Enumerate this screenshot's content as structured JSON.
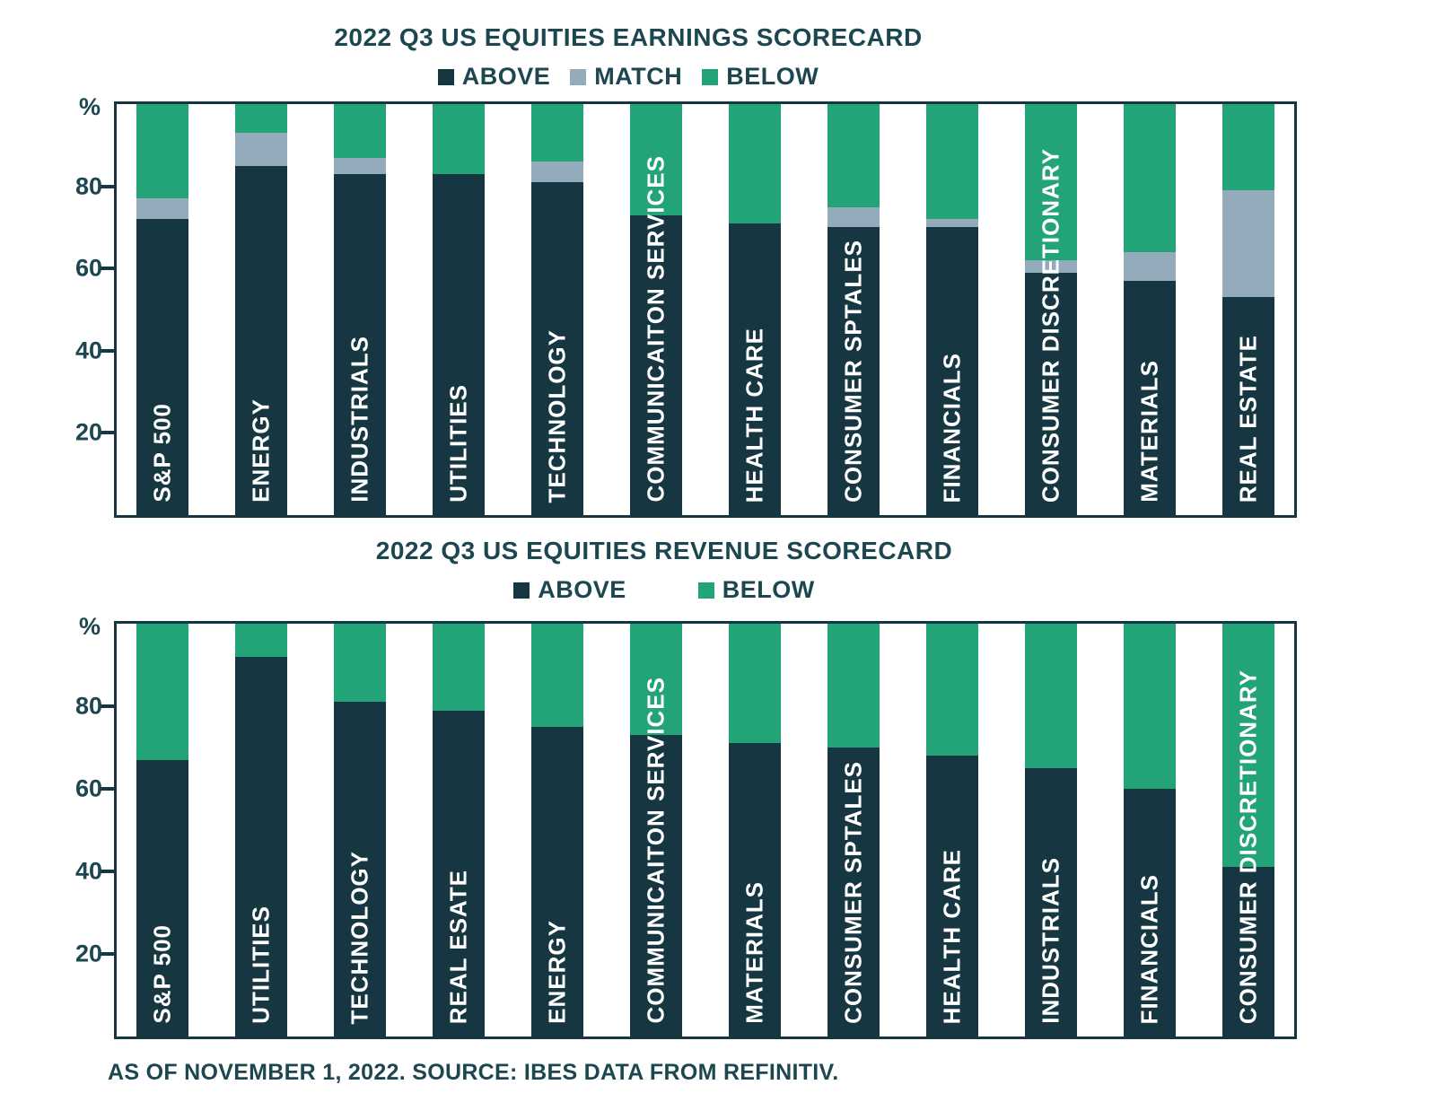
{
  "page": {
    "background": "#ffffff"
  },
  "colors": {
    "above": "#163741",
    "match": "#93ABBB",
    "below": "#22A378",
    "text": "#1C4750",
    "bar_label": "#ffffff"
  },
  "footer": {
    "text": "AS OF NOVEMBER 1, 2022. SOURCE: IBES DATA FROM REFINITIV."
  },
  "chart_data": [
    {
      "type": "bar",
      "stacked": true,
      "title": "2022 Q3 US EQUITIES EARNINGS SCORECARD",
      "ylabel": "%",
      "ylim": [
        0,
        100
      ],
      "y_ticks": [
        20,
        40,
        60,
        80
      ],
      "grid": false,
      "legend_position": "top",
      "categories": [
        "S&P 500",
        "ENERGY",
        "INDUSTRIALS",
        "UTILITIES",
        "TECHNOLOGY",
        "COMMUNICAITON SERVICES",
        "HEALTH CARE",
        "CONSUMER SPTALES",
        "FINANCIALS",
        "CONSUMER DISCRETIONARY",
        "MATERIALS",
        "REAL ESTATE"
      ],
      "series": [
        {
          "name": "ABOVE",
          "color_key": "above",
          "values": [
            72,
            85,
            83,
            83,
            81,
            73,
            71,
            70,
            70,
            59,
            57,
            53
          ]
        },
        {
          "name": "MATCH",
          "color_key": "match",
          "values": [
            5,
            8,
            4,
            0,
            5,
            0,
            0,
            5,
            2,
            3,
            7,
            26
          ]
        },
        {
          "name": "BELOW",
          "color_key": "below",
          "values": [
            23,
            7,
            13,
            17,
            14,
            27,
            29,
            25,
            28,
            38,
            36,
            21
          ]
        }
      ]
    },
    {
      "type": "bar",
      "stacked": true,
      "title": "2022 Q3 US EQUITIES REVENUE SCORECARD",
      "ylabel": "%",
      "ylim": [
        0,
        100
      ],
      "y_ticks": [
        20,
        40,
        60,
        80
      ],
      "grid": false,
      "legend_position": "top",
      "categories": [
        "S&P 500",
        "UTILITIES",
        "TECHNOLOGY",
        "REAL ESATE",
        "ENERGY",
        "COMMUNICAITON SERVICES",
        "MATERIALS",
        "CONSUMER SPTALES",
        "HEALTH CARE",
        "INDUSTRIALS",
        "FINANCIALS",
        "CONSUMER DISCRETIONARY"
      ],
      "series": [
        {
          "name": "ABOVE",
          "color_key": "above",
          "values": [
            67,
            92,
            81,
            79,
            75,
            73,
            71,
            70,
            68,
            65,
            60,
            41
          ]
        },
        {
          "name": "BELOW",
          "color_key": "below",
          "values": [
            33,
            8,
            19,
            21,
            25,
            27,
            29,
            30,
            32,
            35,
            40,
            59
          ]
        }
      ]
    }
  ]
}
